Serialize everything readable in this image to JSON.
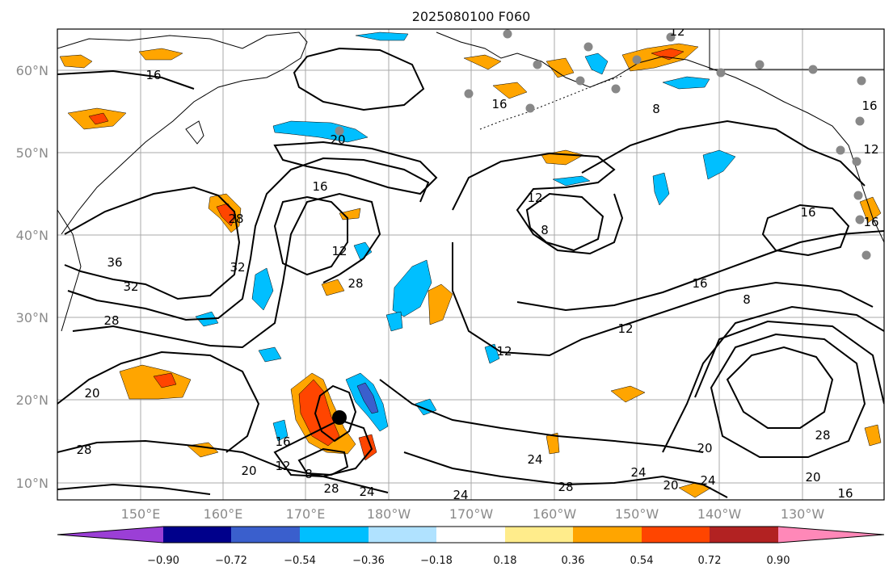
{
  "title": "2025080100 F060",
  "lat_labels": [
    "60°N",
    "50°N",
    "40°N",
    "30°N",
    "20°N",
    "10°N"
  ],
  "lon_labels": [
    "150°E",
    "160°E",
    "170°E",
    "180°W",
    "170°W",
    "160°W",
    "150°W",
    "140°W",
    "130°W"
  ],
  "colorbar": {
    "colors": [
      "#9b3fd6",
      "#00008b",
      "#3a5fcd",
      "#00bfff",
      "#b0e2ff",
      "#ffffff",
      "#ffec8b",
      "#ffa500",
      "#ff4500",
      "#b22222",
      "#ff88b8"
    ],
    "tick_labels": [
      "−0.90",
      "−0.72",
      "−0.54",
      "−0.36",
      "−0.18",
      "0.18",
      "0.36",
      "0.54",
      "0.72",
      "0.90"
    ]
  },
  "contour_labels": [
    "16",
    "20",
    "16",
    "12",
    "8",
    "16",
    "12",
    "16",
    "36",
    "32",
    "32",
    "28",
    "12",
    "28",
    "8",
    "16",
    "12",
    "28",
    "20",
    "16",
    "12",
    "8",
    "28",
    "24",
    "24",
    "20",
    "24",
    "28",
    "20",
    "24",
    "28",
    "28",
    "20",
    "16",
    "12",
    "16",
    "8",
    "24",
    "16",
    "12",
    "20"
  ],
  "station_marker_color": "#888888",
  "storm_marker_color": "#000000"
}
